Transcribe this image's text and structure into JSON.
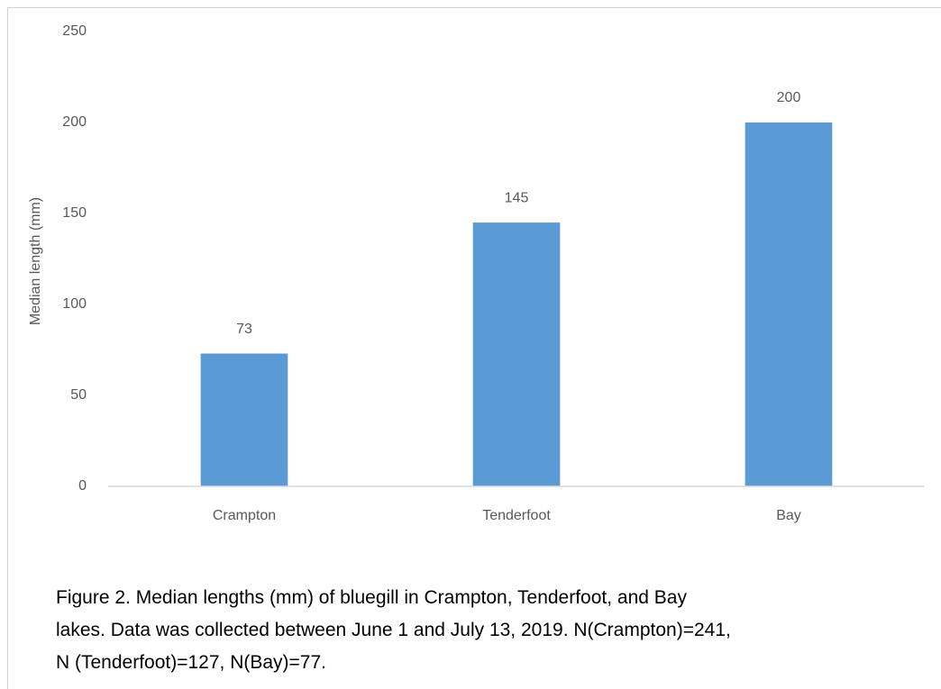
{
  "chart_data": {
    "type": "bar",
    "ylabel": "Median length (mm)",
    "categories": [
      "Crampton",
      "Tenderfoot",
      "Bay"
    ],
    "values": [
      73,
      145,
      200
    ],
    "color": "#5b9bd5",
    "ylim": [
      0,
      250
    ],
    "yticks": [
      0,
      50,
      100,
      150,
      200,
      250
    ],
    "grid": false,
    "caption": [
      "Figure 2. Median lengths (mm) of bluegill in Crampton, Tenderfoot, and Bay",
      "lakes. Data was collected between June 1 and July 13, 2019.  N(Crampton)=241,",
      "N (Tenderfoot)=127, N(Bay)=77."
    ]
  }
}
